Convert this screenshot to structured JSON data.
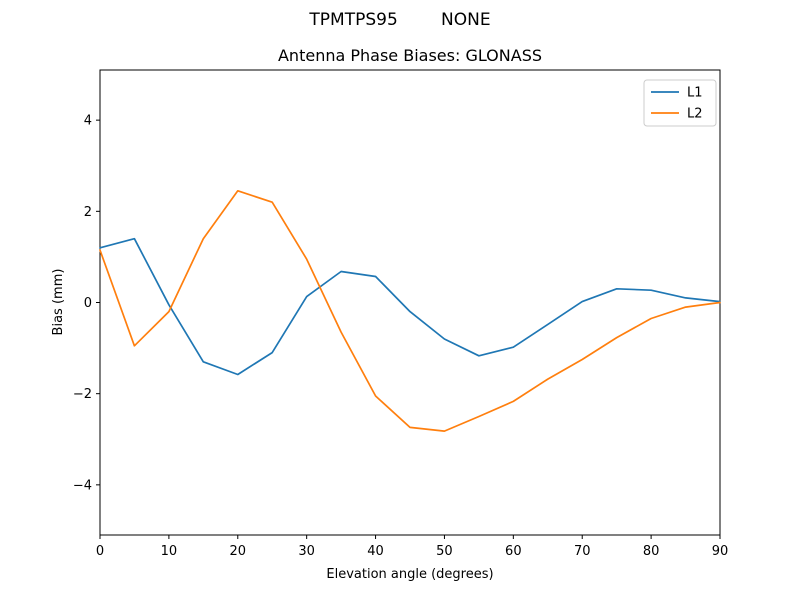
{
  "figure": {
    "suptitle": "TPMTPS95        NONE"
  },
  "chart_data": {
    "type": "line",
    "title": "Antenna Phase Biases: GLONASS",
    "xlabel": "Elevation angle (degrees)",
    "ylabel": "Bias (mm)",
    "xlim": [
      0,
      90
    ],
    "ylim": [
      -5.1,
      5.1
    ],
    "xticks": [
      0,
      10,
      20,
      30,
      40,
      50,
      60,
      70,
      80,
      90
    ],
    "xticklabels": [
      "0",
      "10",
      "20",
      "30",
      "40",
      "50",
      "60",
      "70",
      "80",
      "90"
    ],
    "yticks": [
      -4,
      -2,
      0,
      2,
      4
    ],
    "yticklabels": [
      "−4",
      "−2",
      "0",
      "2",
      "4"
    ],
    "grid": false,
    "background_color": "#ffffff",
    "frame_color": "#000000",
    "legend": {
      "position": "upper right",
      "edge_color": "#cccccc"
    },
    "x": [
      0,
      5,
      10,
      15,
      20,
      25,
      30,
      35,
      40,
      45,
      50,
      55,
      60,
      65,
      70,
      75,
      80,
      85,
      90
    ],
    "series": [
      {
        "name": "L1",
        "color": "#1f77b4",
        "values": [
          1.2,
          1.4,
          -0.05,
          -1.3,
          -1.58,
          -1.1,
          0.13,
          0.68,
          0.57,
          -0.2,
          -0.8,
          -1.17,
          -0.98,
          -0.48,
          0.02,
          0.3,
          0.27,
          0.1,
          0.02
        ]
      },
      {
        "name": "L2",
        "color": "#ff7f0e",
        "values": [
          1.15,
          -0.95,
          -0.2,
          1.4,
          2.45,
          2.2,
          0.95,
          -0.65,
          -2.05,
          -2.74,
          -2.82,
          -2.5,
          -2.17,
          -1.68,
          -1.25,
          -0.77,
          -0.35,
          -0.1,
          0.0
        ]
      }
    ]
  }
}
